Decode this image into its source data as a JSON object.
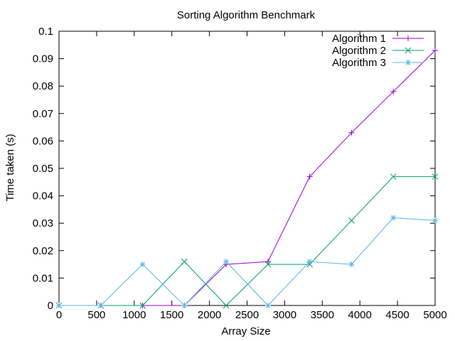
{
  "chart_data": {
    "type": "line",
    "title": "Sorting Algorithm Benchmark",
    "xlabel": "Array Size",
    "ylabel": "Time taken (s)",
    "xlim": [
      0,
      5000
    ],
    "ylim": [
      0,
      0.1
    ],
    "x_ticks": [
      "0",
      "500",
      "1000",
      "1500",
      "2000",
      "2500",
      "3000",
      "3500",
      "4000",
      "4500",
      "5000"
    ],
    "y_ticks": [
      "0",
      "0.01",
      "0.02",
      "0.03",
      "0.04",
      "0.05",
      "0.06",
      "0.07",
      "0.08",
      "0.09",
      "0.1"
    ],
    "x_tick_values": [
      0,
      500,
      1000,
      1500,
      2000,
      2500,
      3000,
      3500,
      4000,
      4500,
      5000
    ],
    "y_tick_values": [
      0,
      0.01,
      0.02,
      0.03,
      0.04,
      0.05,
      0.06,
      0.07,
      0.08,
      0.09,
      0.1
    ],
    "grid": false,
    "legend_position": "top-right",
    "x": [
      0,
      556,
      1111,
      1667,
      2222,
      2778,
      3333,
      3889,
      4444,
      5000
    ],
    "series": [
      {
        "name": "Algorithm 1",
        "color": "#9400d3",
        "marker": "plus",
        "values": [
          0,
          0,
          0,
          0,
          0.015,
          0.016,
          0.047,
          0.063,
          0.078,
          0.093
        ]
      },
      {
        "name": "Algorithm 2",
        "color": "#009e73",
        "marker": "cross",
        "values": [
          0,
          0,
          0,
          0.016,
          0,
          0.015,
          0.015,
          0.031,
          0.047,
          0.047
        ]
      },
      {
        "name": "Algorithm 3",
        "color": "#56b4e9",
        "marker": "star",
        "values": [
          0,
          0,
          0.015,
          0,
          0.016,
          0,
          0.016,
          0.015,
          0.032,
          0.031
        ]
      }
    ]
  }
}
